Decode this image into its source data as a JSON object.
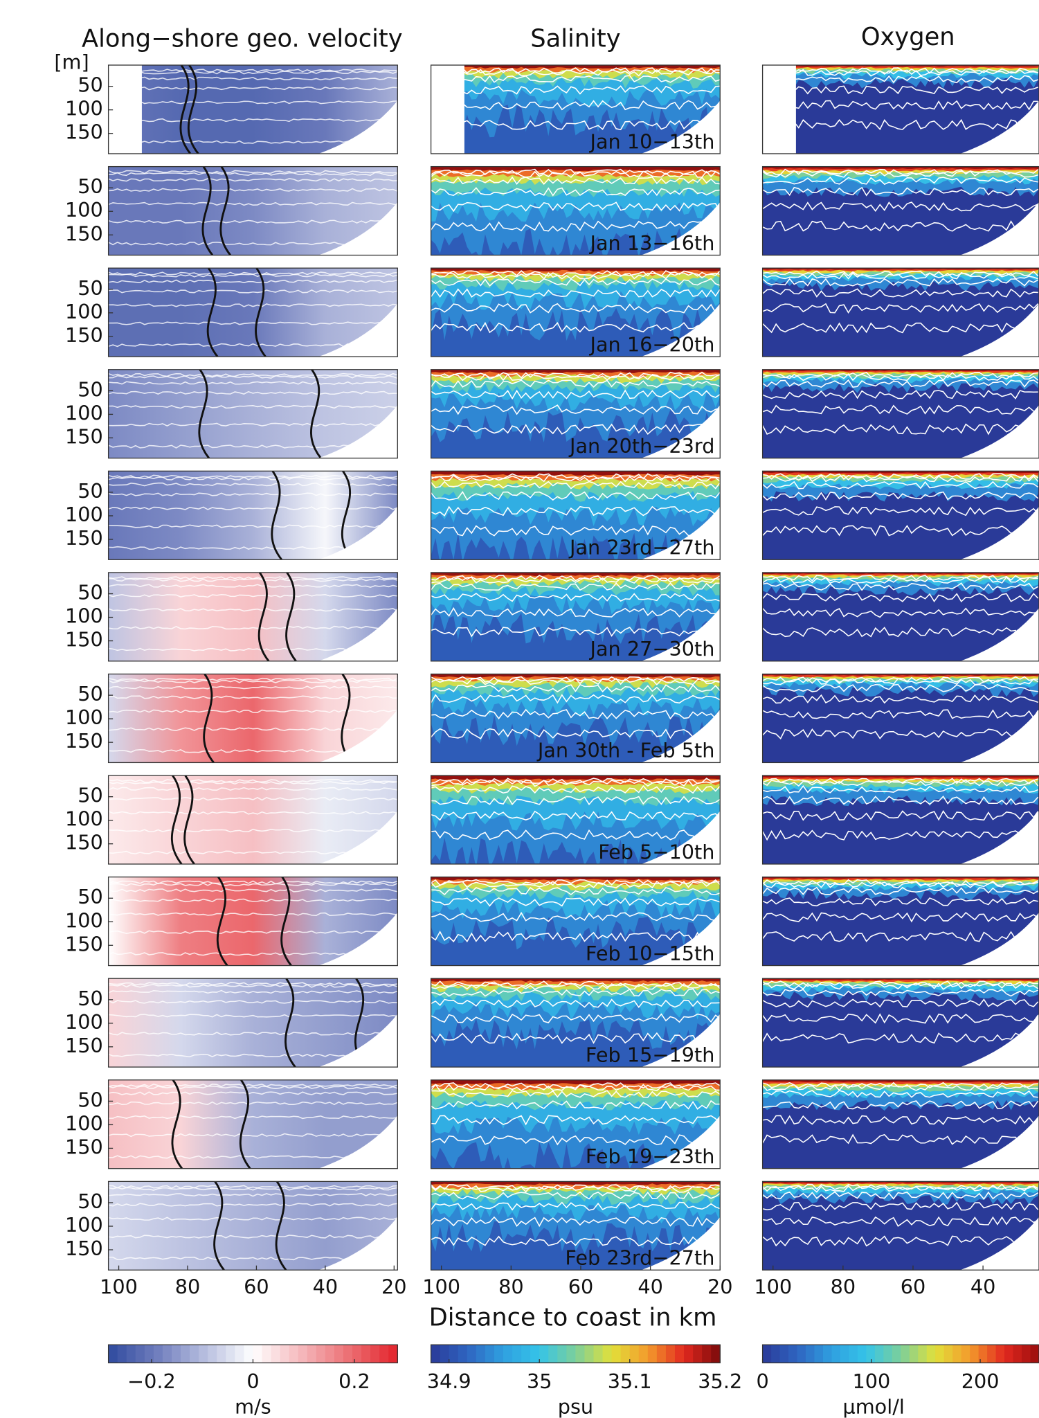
{
  "chart_data": [
    {
      "type": "contour",
      "title": "Along−shore geo. velocity",
      "ylabel": "[m]",
      "xlim": [
        103,
        19
      ],
      "ylim": [
        5,
        193
      ],
      "xticks": [
        100,
        80,
        60,
        40,
        20
      ],
      "yticks": [
        50,
        100,
        150
      ],
      "colormap": [
        "#2f4a9e",
        "#6f7dbd",
        "#b7bedf",
        "#ffffff",
        "#f5b8bc",
        "#ec6f73",
        "#e3232b"
      ],
      "clim": [
        -0.285,
        0.285
      ],
      "cticks": [
        {
          "value": -0.2,
          "label": "−0.2"
        },
        0,
        0.2
      ],
      "clabel": "m/s"
    },
    {
      "type": "contour",
      "title": "Salinity",
      "xlabel": "Distance to coast in km",
      "xlim": [
        103,
        20
      ],
      "xticks": [
        100,
        80,
        60,
        40,
        20
      ],
      "colormap": [
        "#2a3a98",
        "#2f64c0",
        "#2f9fe0",
        "#35c4e8",
        "#7ccf9a",
        "#e2e03a",
        "#f39a2c",
        "#e2281f",
        "#7a0a0a"
      ],
      "clim": [
        34.88,
        35.2
      ],
      "cticks": [
        34.9,
        35,
        35.1,
        35.2
      ],
      "clabel": "psu",
      "panels": [
        "Jan 10−13th",
        "Jan 13−16th",
        "Jan 16−20th",
        "Jan 20th−23rd",
        "Jan 23rd−27th",
        "Jan 27−30th",
        "Jan 30th - Feb 5th",
        "Feb 5−10th",
        "Feb 10−15th",
        "Feb 15−19th",
        "Feb 19−23th",
        "Feb 23rd−27th"
      ]
    },
    {
      "type": "contour",
      "title": "Oxygen",
      "xlim": [
        103,
        24
      ],
      "xticks": [
        100,
        80,
        60,
        40
      ],
      "colormap": [
        "#2a3a98",
        "#2f64c0",
        "#2f9fe0",
        "#35c4e8",
        "#7ccf9a",
        "#e2e03a",
        "#f39a2c",
        "#e2281f",
        "#9a0d0d"
      ],
      "clim": [
        0,
        254
      ],
      "cticks": [
        0,
        100,
        200
      ],
      "clabel": "μmol/l"
    }
  ]
}
